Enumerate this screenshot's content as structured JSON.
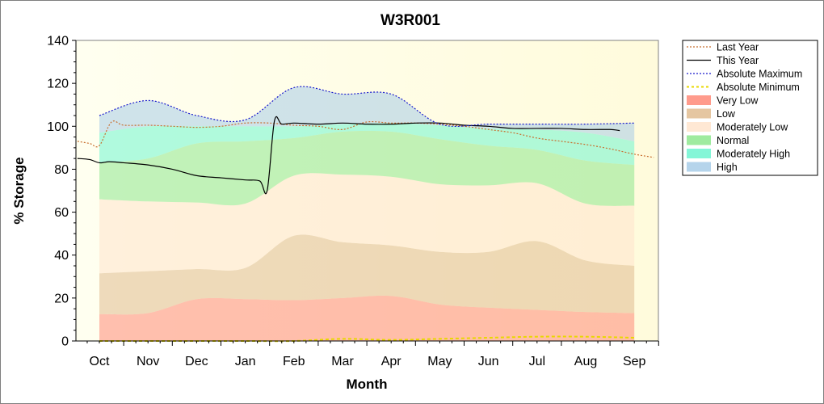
{
  "chart_data": {
    "type": "area",
    "title": "W3R001",
    "xlabel": "Month",
    "ylabel": "% Storage",
    "ylim": [
      0,
      140
    ],
    "yticks": [
      0,
      20,
      40,
      60,
      80,
      100,
      120,
      140
    ],
    "categories": [
      "Oct",
      "Nov",
      "Dec",
      "Jan",
      "Feb",
      "Mar",
      "Apr",
      "May",
      "Jun",
      "Jul",
      "Aug",
      "Sep"
    ],
    "legend_position": "right",
    "bands": [
      {
        "name": "Very Low",
        "color": "#ff8a78",
        "upper": [
          12.5,
          13,
          19.5,
          19.5,
          19,
          20,
          21,
          17,
          15.5,
          14.5,
          13.5,
          13
        ]
      },
      {
        "name": "Low",
        "color": "#e0bc90",
        "upper": [
          31.5,
          32.5,
          33.5,
          34,
          49,
          46,
          44.5,
          41.5,
          41.5,
          46.5,
          37.5,
          35
        ]
      },
      {
        "name": "Moderately Low",
        "color": "#ffe4cc",
        "upper": [
          66,
          65,
          64.5,
          64,
          77,
          77.5,
          76.5,
          73,
          72.5,
          73.5,
          64,
          63
        ]
      },
      {
        "name": "Normal",
        "color": "#8ee88e",
        "upper": [
          83,
          85,
          92,
          93,
          94.5,
          97.5,
          97.5,
          94,
          91,
          89,
          84,
          82
        ]
      },
      {
        "name": "Moderately High",
        "color": "#6ff5d0",
        "upper": [
          97,
          100,
          100,
          100,
          100,
          101,
          101.5,
          100.5,
          99,
          98.5,
          97,
          93
        ]
      },
      {
        "name": "High",
        "color": "#a8cce8",
        "upper": [
          105,
          112,
          105,
          103,
          118,
          115,
          115,
          101,
          101,
          101,
          101,
          101.5
        ]
      }
    ],
    "series": [
      {
        "name": "Last Year",
        "color": "#c86f30",
        "style": "dotted",
        "x": [
          -0.45,
          -0.2,
          0,
          0.25,
          0.5,
          1,
          1.5,
          2,
          2.5,
          3,
          3.5,
          4,
          4.5,
          5,
          5.5,
          6,
          6.5,
          7,
          7.5,
          8,
          8.5,
          9,
          9.5,
          10,
          10.5,
          11,
          11.4
        ],
        "y": [
          93,
          92,
          91,
          102,
          100.5,
          100.5,
          100,
          99.5,
          100,
          101.5,
          101.5,
          100.5,
          100,
          98.5,
          102,
          101.5,
          101.5,
          101,
          100,
          98.5,
          97,
          94.5,
          93,
          91.5,
          89.5,
          87,
          85.5
        ]
      },
      {
        "name": "This Year",
        "color": "#000000",
        "style": "solid",
        "x": [
          -0.45,
          -0.2,
          0,
          0.2,
          0.5,
          1,
          1.5,
          2,
          2.5,
          3,
          3.3,
          3.45,
          3.6,
          3.75,
          4,
          4.5,
          5,
          5.5,
          6,
          6.5,
          7,
          7.5,
          8,
          8.5,
          9,
          9.5,
          10,
          10.5,
          10.7
        ],
        "y": [
          85,
          84.5,
          83,
          83.5,
          83,
          82,
          80,
          77,
          76,
          75,
          74.5,
          70,
          102.5,
          101,
          101.5,
          101,
          101.5,
          101,
          101,
          101.5,
          101.5,
          100.5,
          100,
          99,
          99,
          99,
          98.5,
          98.5,
          98
        ]
      },
      {
        "name": "Absolute Maximum",
        "color": "#1a1acc",
        "style": "dotted",
        "x": [
          0,
          1,
          2,
          3,
          4,
          5,
          6,
          7,
          8,
          9,
          10,
          11
        ],
        "y": [
          105,
          112,
          105,
          103,
          118,
          115,
          115,
          101,
          101,
          101,
          101,
          101.5
        ]
      },
      {
        "name": "Absolute Minimum",
        "color": "#e8d800",
        "style": "dashed",
        "x": [
          0,
          1,
          2,
          3,
          4,
          5,
          6,
          7,
          8,
          9,
          10,
          11
        ],
        "y": [
          0,
          0,
          0,
          0,
          0,
          1,
          0.5,
          1,
          1.5,
          2,
          2,
          1.5
        ]
      }
    ],
    "legend": [
      {
        "label": "Last Year",
        "kind": "line",
        "color": "#c86f30",
        "dash": "2,2"
      },
      {
        "label": "This Year",
        "kind": "line",
        "color": "#000000",
        "dash": ""
      },
      {
        "label": "Absolute Maximum",
        "kind": "line",
        "color": "#1a1acc",
        "dash": "2,2"
      },
      {
        "label": "Absolute Minimum",
        "kind": "line",
        "color": "#e8d800",
        "dash": "3,3"
      },
      {
        "label": "Very Low",
        "kind": "swatch",
        "color": "#ff8a78"
      },
      {
        "label": "Low",
        "kind": "swatch",
        "color": "#e0bc90"
      },
      {
        "label": "Moderately Low",
        "kind": "swatch",
        "color": "#ffe4cc"
      },
      {
        "label": "Normal",
        "kind": "swatch",
        "color": "#8ee88e"
      },
      {
        "label": "Moderately High",
        "kind": "swatch",
        "color": "#6ff5d0"
      },
      {
        "label": "High",
        "kind": "swatch",
        "color": "#a8cce8"
      }
    ]
  }
}
